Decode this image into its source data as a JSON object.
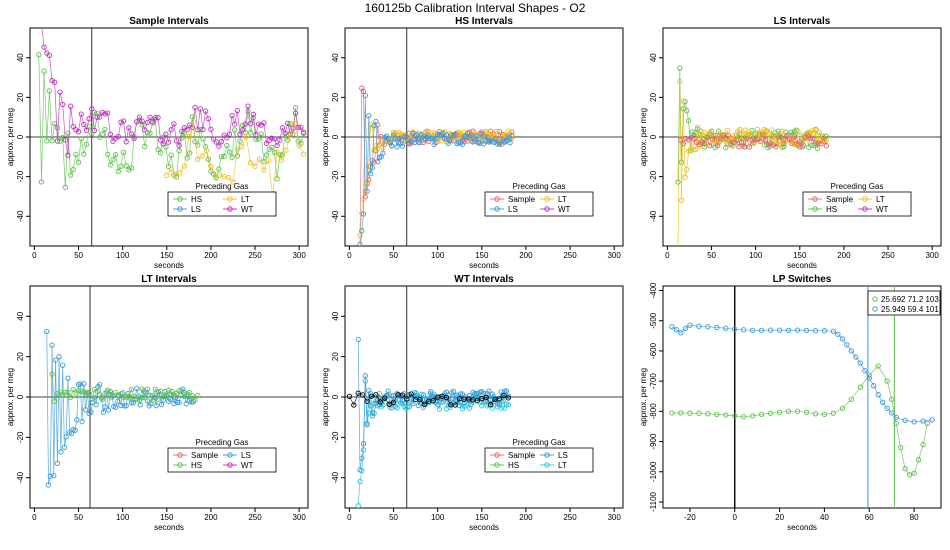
{
  "figure_title": "160125b   Calibration Interval Shapes - O2",
  "colors": {
    "Sample": "#e8606a",
    "HS": "#5cc24a",
    "LS": "#3a9ad9",
    "LT": "#22c8e0",
    "WT": "#c030c0",
    "LowO2": "#f0c020",
    "black": "#000000"
  },
  "chart_data": [
    {
      "id": "sample",
      "type": "scatter",
      "title": "Sample Intervals",
      "xlabel": "seconds",
      "ylabel": "approx. per meg",
      "xlim": [
        -5,
        310
      ],
      "ylim": [
        -55,
        55
      ],
      "xticks": [
        0,
        50,
        100,
        150,
        200,
        250,
        300
      ],
      "yticks": [
        -40,
        -20,
        0,
        20,
        40
      ],
      "vline": 65,
      "legend": {
        "title": "Preceding Gas",
        "entries": [
          "HS",
          "LT",
          "LS",
          "WT"
        ]
      },
      "series": [
        {
          "name": "HS",
          "color_key": "HS",
          "gen": {
            "x0": 5,
            "x1": 305,
            "step": 3,
            "base": -5,
            "amp": 10,
            "noise": 10,
            "spike": 40,
            "tau": 18
          }
        },
        {
          "name": "WT",
          "color_key": "WT",
          "gen": {
            "x0": 5,
            "x1": 305,
            "step": 3,
            "base": 5,
            "amp": 4,
            "noise": 7,
            "spike": 50,
            "tau": 20
          }
        },
        {
          "name": "LT",
          "color_key": "LowO2",
          "gen": {
            "x0": 150,
            "x1": 305,
            "step": 5,
            "base": -10,
            "amp": 8,
            "noise": 12,
            "spike": 0,
            "tau": 20
          }
        }
      ]
    },
    {
      "id": "hs",
      "type": "scatter",
      "title": "HS Intervals",
      "xlabel": "seconds",
      "ylabel": "approx. per meg",
      "xlim": [
        -5,
        310
      ],
      "ylim": [
        -55,
        55
      ],
      "xticks": [
        0,
        50,
        100,
        150,
        200,
        250,
        300
      ],
      "yticks": [
        -40,
        -20,
        0,
        20,
        40
      ],
      "vline": 65,
      "legend": {
        "title": "Preceding Gas",
        "entries": [
          "Sample",
          "LT",
          "LS",
          "WT"
        ]
      },
      "series": [
        {
          "name": "Sample",
          "color_key": "Sample",
          "gen": {
            "x0": 12,
            "x1": 185,
            "step": 2,
            "base": 0,
            "amp": 0,
            "noise": 3,
            "spike": -55,
            "tau": 10
          }
        },
        {
          "name": "LT",
          "color_key": "LowO2",
          "gen": {
            "x0": 12,
            "x1": 185,
            "step": 2,
            "base": 0,
            "amp": 0,
            "noise": 3,
            "spike": -50,
            "tau": 9
          }
        },
        {
          "name": "LS",
          "color_key": "LS",
          "gen": {
            "x0": 12,
            "x1": 185,
            "step": 2,
            "base": -1,
            "amp": 0,
            "noise": 3,
            "spike": -55,
            "tau": 11
          }
        }
      ]
    },
    {
      "id": "ls",
      "type": "scatter",
      "title": "LS Intervals",
      "xlabel": "seconds",
      "ylabel": "approx. per meg",
      "xlim": [
        -5,
        310
      ],
      "ylim": [
        -55,
        55
      ],
      "xticks": [
        0,
        50,
        100,
        150,
        200,
        250,
        300
      ],
      "yticks": [
        -40,
        -20,
        0,
        20,
        40
      ],
      "vline": null,
      "legend": {
        "title": "Preceding Gas",
        "entries": [
          "Sample",
          "LT",
          "HS",
          "WT"
        ]
      },
      "series": [
        {
          "name": "HS",
          "color_key": "HS",
          "gen": {
            "x0": 12,
            "x1": 180,
            "step": 2,
            "base": -1,
            "amp": 0,
            "noise": 5,
            "spike": 40,
            "tau": 8
          }
        },
        {
          "name": "LT",
          "color_key": "LowO2",
          "gen": {
            "x0": 12,
            "x1": 180,
            "step": 2,
            "base": 0,
            "amp": 0,
            "noise": 4,
            "spike": -60,
            "tau": 7
          }
        },
        {
          "name": "Sample",
          "color_key": "Sample",
          "gen": {
            "x0": 15,
            "x1": 180,
            "step": 3,
            "base": -2,
            "amp": 0,
            "noise": 3,
            "spike": 0,
            "tau": 8
          }
        }
      ]
    },
    {
      "id": "lt",
      "type": "scatter",
      "title": "LT Intervals",
      "xlabel": "seconds",
      "ylabel": "approx. per meg",
      "xlim": [
        -5,
        310
      ],
      "ylim": [
        -55,
        55
      ],
      "xticks": [
        0,
        50,
        100,
        150,
        200,
        250,
        300
      ],
      "yticks": [
        -40,
        -20,
        0,
        20,
        40
      ],
      "vline": 63,
      "legend": {
        "title": "Preceding Gas",
        "entries": [
          "Sample",
          "LS",
          "HS",
          "WT"
        ]
      },
      "series": [
        {
          "name": "LS",
          "color_key": "LS",
          "gen": {
            "x0": 14,
            "x1": 180,
            "step": 2,
            "base": 0,
            "amp": 0,
            "noise": 4,
            "spike": -50,
            "tau": 25
          }
        },
        {
          "name": "HS",
          "color_key": "HS",
          "gen": {
            "x0": 20,
            "x1": 185,
            "step": 3,
            "base": 1,
            "amp": 0,
            "noise": 3,
            "spike": 9,
            "tau": 5
          }
        }
      ]
    },
    {
      "id": "wt",
      "type": "scatter",
      "title": "WT Intervals",
      "xlabel": "seconds",
      "ylabel": "approx. per meg",
      "xlim": [
        -5,
        310
      ],
      "ylim": [
        -55,
        55
      ],
      "xticks": [
        0,
        50,
        100,
        150,
        200,
        250,
        300
      ],
      "yticks": [
        -40,
        -20,
        0,
        20,
        40
      ],
      "vline": 65,
      "legend": {
        "title": "Preceding Gas",
        "entries": [
          "Sample",
          "LS",
          "HS",
          "LT"
        ]
      },
      "series": [
        {
          "name": "LT",
          "color_key": "LT",
          "gen": {
            "x0": 10,
            "x1": 180,
            "step": 2,
            "base": -2,
            "amp": 0,
            "noise": 4,
            "spike": -55,
            "tau": 7
          }
        },
        {
          "name": "LS",
          "color_key": "LS",
          "gen": {
            "x0": 10,
            "x1": 180,
            "step": 2,
            "base": -1,
            "amp": 0,
            "noise": 4,
            "spike": -45,
            "tau": 7
          }
        },
        {
          "name": "black",
          "color_key": "black",
          "gen": {
            "x0": 0,
            "x1": 180,
            "step": 5,
            "base": -1,
            "amp": 0,
            "noise": 3,
            "spike": 0,
            "tau": 5
          }
        }
      ]
    },
    {
      "id": "lp",
      "type": "line",
      "title": "LP Switches",
      "xlabel": "seconds",
      "ylabel": "approx. per meg",
      "xlim": [
        -32,
        92
      ],
      "ylim": [
        -1120,
        -385
      ],
      "xticks": [
        -20,
        0,
        20,
        40,
        60,
        80
      ],
      "yticks": [
        -1100,
        -1000,
        -900,
        -800,
        -700,
        -600,
        -500,
        -400
      ],
      "vline": 0,
      "vlines_colored": [
        {
          "x": 59.4,
          "color_key": "LS"
        },
        {
          "x": 71.2,
          "color_key": "HS"
        }
      ],
      "legend": {
        "title": "",
        "entries": [
          "25.692 71.2 103",
          "25.949 59.4 101"
        ]
      },
      "series": [
        {
          "name": "25.692 71.2 103",
          "color_key": "HS",
          "x": [
            -28,
            -24,
            -20,
            -16,
            -12,
            -8,
            -4,
            0,
            4,
            8,
            12,
            16,
            20,
            24,
            28,
            32,
            36,
            40,
            44,
            48,
            52,
            56,
            60,
            64,
            68,
            70,
            72,
            74,
            76,
            78,
            80,
            82,
            84,
            86
          ],
          "y": [
            -805,
            -805,
            -806,
            -806,
            -808,
            -810,
            -812,
            -815,
            -818,
            -815,
            -810,
            -806,
            -803,
            -800,
            -800,
            -803,
            -808,
            -810,
            -806,
            -790,
            -760,
            -720,
            -680,
            -650,
            -700,
            -760,
            -840,
            -920,
            -990,
            -1010,
            -1005,
            -960,
            -910,
            -840
          ]
        },
        {
          "name": "25.949 59.4 101",
          "color_key": "LS",
          "x": [
            -28,
            -26,
            -24,
            -22,
            -20,
            -16,
            -12,
            -8,
            -4,
            0,
            4,
            8,
            12,
            16,
            20,
            24,
            28,
            32,
            36,
            40,
            44,
            46,
            48,
            50,
            52,
            54,
            56,
            58,
            60,
            62,
            64,
            66,
            68,
            70,
            72,
            76,
            80,
            84,
            88
          ],
          "y": [
            -520,
            -530,
            -540,
            -525,
            -515,
            -518,
            -520,
            -522,
            -525,
            -528,
            -530,
            -532,
            -532,
            -531,
            -531,
            -532,
            -531,
            -532,
            -533,
            -533,
            -535,
            -545,
            -560,
            -580,
            -600,
            -620,
            -640,
            -665,
            -690,
            -715,
            -745,
            -770,
            -790,
            -805,
            -820,
            -830,
            -835,
            -832,
            -828
          ]
        }
      ]
    }
  ]
}
